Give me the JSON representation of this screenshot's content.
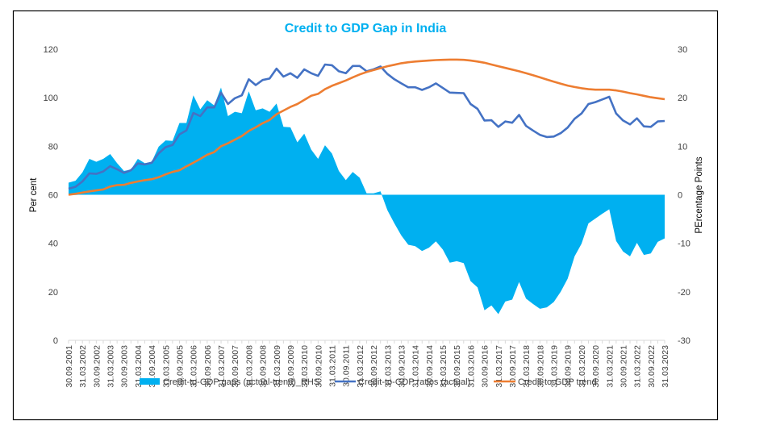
{
  "chart_data": {
    "type": "area+line",
    "title": "Credit to GDP Gap in India",
    "ylabel": "Per cent",
    "y2label": "PErcentage Points",
    "ylim": [
      0,
      120
    ],
    "y2lim": [
      -30,
      30
    ],
    "yticks": [
      "0",
      "20",
      "40",
      "60",
      "80",
      "100",
      "120"
    ],
    "y2ticks": [
      "-30",
      "-20",
      "-10",
      "0",
      "10",
      "20",
      "30"
    ],
    "xlabels": [
      "30.09.2001",
      "31.03.2002",
      "30.09.2002",
      "31.03.2003",
      "30.09.2003",
      "31.03.2004",
      "30.09.2004",
      "31.03.2005",
      "30.09.2005",
      "31.03.2006",
      "30.09.2006",
      "31.03.2007",
      "30.09.2007",
      "31.03.2008",
      "30.09.2008",
      "31.03.2009",
      "30.09.2009",
      "31.03.2010",
      "30.09.2010",
      "31.03.2011",
      "30.09.2011",
      "31.03.2012",
      "30.09.2012",
      "31.03.2013",
      "30.09.2013",
      "31.03.2014",
      "30.09.2014",
      "31.03.2015",
      "30.09.2015",
      "31.03.2016",
      "30.09.2016",
      "31.03.2017",
      "30.09.2017",
      "31.03.2018",
      "30.09.2018",
      "31.03.2019",
      "30.09.2019",
      "31.03.2020",
      "30.09.2020",
      "31.03.2021",
      "30.09.2021",
      "31.03.2022",
      "30.09.2022",
      "31.03.2023"
    ],
    "frequency": "quarterly",
    "series": [
      {
        "name": "Credit-to-GDP gaps (actual-trend)_RHS",
        "type": "area",
        "axis": "right",
        "color": "#00B0F0",
        "values": [
          2.5,
          2.9,
          4.6,
          7.4,
          6.8,
          7.4,
          8.4,
          6.5,
          4.9,
          5.2,
          7.4,
          6.5,
          6.8,
          9.9,
          11.2,
          11.1,
          14.8,
          14.8,
          20.5,
          17.6,
          19.5,
          18.4,
          22.1,
          16.2,
          17.1,
          16.8,
          21.3,
          17.4,
          17.8,
          17.1,
          18.8,
          14.0,
          13.9,
          10.8,
          12.6,
          9.3,
          7.4,
          10.2,
          8.5,
          4.9,
          3.0,
          4.7,
          3.5,
          0.3,
          0.3,
          0.7,
          -3.2,
          -5.9,
          -8.4,
          -10.3,
          -10.6,
          -11.6,
          -10.9,
          -9.6,
          -11.3,
          -14.0,
          -13.7,
          -14.1,
          -17.8,
          -19.1,
          -23.8,
          -22.8,
          -24.6,
          -22.0,
          -21.6,
          -18.0,
          -21.4,
          -22.5,
          -23.5,
          -23.2,
          -22.1,
          -20.0,
          -17.3,
          -12.7,
          -10.1,
          -5.9,
          -4.9,
          -3.9,
          -3.0,
          -9.5,
          -11.7,
          -12.7,
          -9.9,
          -12.4,
          -12.1,
          -9.7,
          -9.0
        ]
      },
      {
        "name": "Credit-to-GDP ratios (actual)",
        "type": "line",
        "axis": "left",
        "color": "#4472C4",
        "values": [
          62.5,
          63.3,
          65.5,
          68.8,
          68.6,
          69.6,
          71.8,
          70.5,
          69.0,
          70.1,
          72.9,
          72.5,
          73.2,
          77.1,
          79.6,
          80.5,
          84.9,
          86.5,
          93.7,
          92.4,
          96.0,
          96.0,
          102.1,
          97.4,
          99.8,
          101.0,
          107.6,
          105.2,
          107.3,
          107.9,
          112.0,
          108.7,
          110.1,
          108.2,
          111.7,
          110.1,
          109.0,
          113.7,
          113.4,
          110.9,
          110.1,
          113.1,
          113.1,
          110.9,
          111.7,
          112.9,
          109.8,
          107.6,
          105.9,
          104.3,
          104.3,
          103.2,
          104.3,
          105.9,
          104.0,
          102.1,
          102.0,
          101.9,
          97.4,
          95.4,
          90.6,
          90.7,
          88.0,
          90.2,
          89.7,
          92.9,
          88.4,
          86.5,
          84.7,
          83.8,
          84.0,
          85.4,
          87.7,
          91.3,
          93.5,
          97.4,
          98.2,
          99.3,
          100.4,
          93.5,
          90.6,
          89.0,
          91.5,
          88.2,
          88.0,
          90.2,
          90.4
        ]
      },
      {
        "name": "Credit-to-GDP trend",
        "type": "line",
        "axis": "left",
        "color": "#ED7D31",
        "values": [
          60.0,
          60.4,
          60.9,
          61.4,
          61.8,
          62.2,
          63.4,
          64.0,
          64.1,
          64.9,
          65.5,
          66.0,
          66.4,
          67.2,
          68.4,
          69.4,
          70.1,
          71.7,
          73.2,
          74.8,
          76.5,
          77.6,
          80.0,
          81.2,
          82.7,
          84.2,
          86.3,
          87.8,
          89.5,
          90.8,
          93.2,
          94.7,
          96.2,
          97.4,
          99.1,
          100.8,
          101.6,
          103.5,
          104.9,
          106.0,
          107.1,
          108.4,
          109.6,
          110.6,
          111.4,
          112.2,
          113.0,
          113.6,
          114.2,
          114.6,
          114.9,
          115.1,
          115.3,
          115.5,
          115.6,
          115.7,
          115.7,
          115.6,
          115.3,
          114.9,
          114.4,
          113.7,
          113.0,
          112.3,
          111.6,
          110.9,
          110.1,
          109.3,
          108.4,
          107.5,
          106.6,
          105.8,
          105.0,
          104.4,
          103.9,
          103.5,
          103.3,
          103.3,
          103.3,
          103.0,
          102.5,
          101.9,
          101.4,
          100.8,
          100.2,
          99.8,
          99.4
        ]
      }
    ],
    "legend_position": "bottom"
  }
}
